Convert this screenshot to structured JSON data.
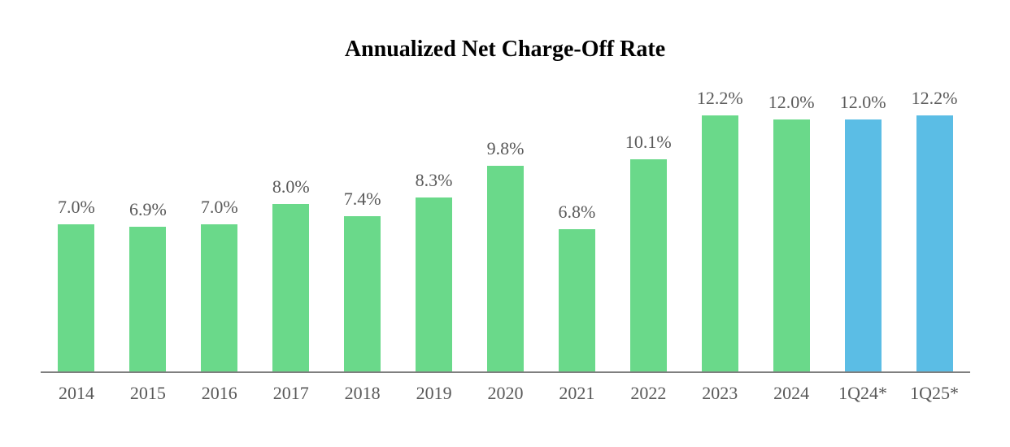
{
  "chart_data": {
    "type": "bar",
    "title": "Annualized Net Charge-Off Rate",
    "categories": [
      "2014",
      "2015",
      "2016",
      "2017",
      "2018",
      "2019",
      "2020",
      "2021",
      "2022",
      "2023",
      "2024",
      "1Q24*",
      "1Q25*"
    ],
    "values": [
      7.0,
      6.9,
      7.0,
      8.0,
      7.4,
      8.3,
      9.8,
      6.8,
      10.1,
      12.2,
      12.0,
      12.0,
      12.2
    ],
    "labels": [
      "7.0%",
      "6.9%",
      "7.0%",
      "8.0%",
      "7.4%",
      "8.3%",
      "9.8%",
      "6.8%",
      "10.1%",
      "12.2%",
      "12.0%",
      "12.0%",
      "12.2%"
    ],
    "bar_groups": [
      "annual",
      "annual",
      "annual",
      "annual",
      "annual",
      "annual",
      "annual",
      "annual",
      "annual",
      "annual",
      "annual",
      "quarterly",
      "quarterly"
    ],
    "colors": {
      "annual_bar": "#6AD98A",
      "quarterly_bar": "#5BBDE5",
      "label_text": "#595959",
      "axis_line": "#7F7F7F",
      "title_text": "#000000"
    },
    "xlabel": "",
    "ylabel": "",
    "ylim": [
      0,
      13.45
    ],
    "grid": false,
    "legend": "none",
    "data_labels": "above-bars"
  }
}
